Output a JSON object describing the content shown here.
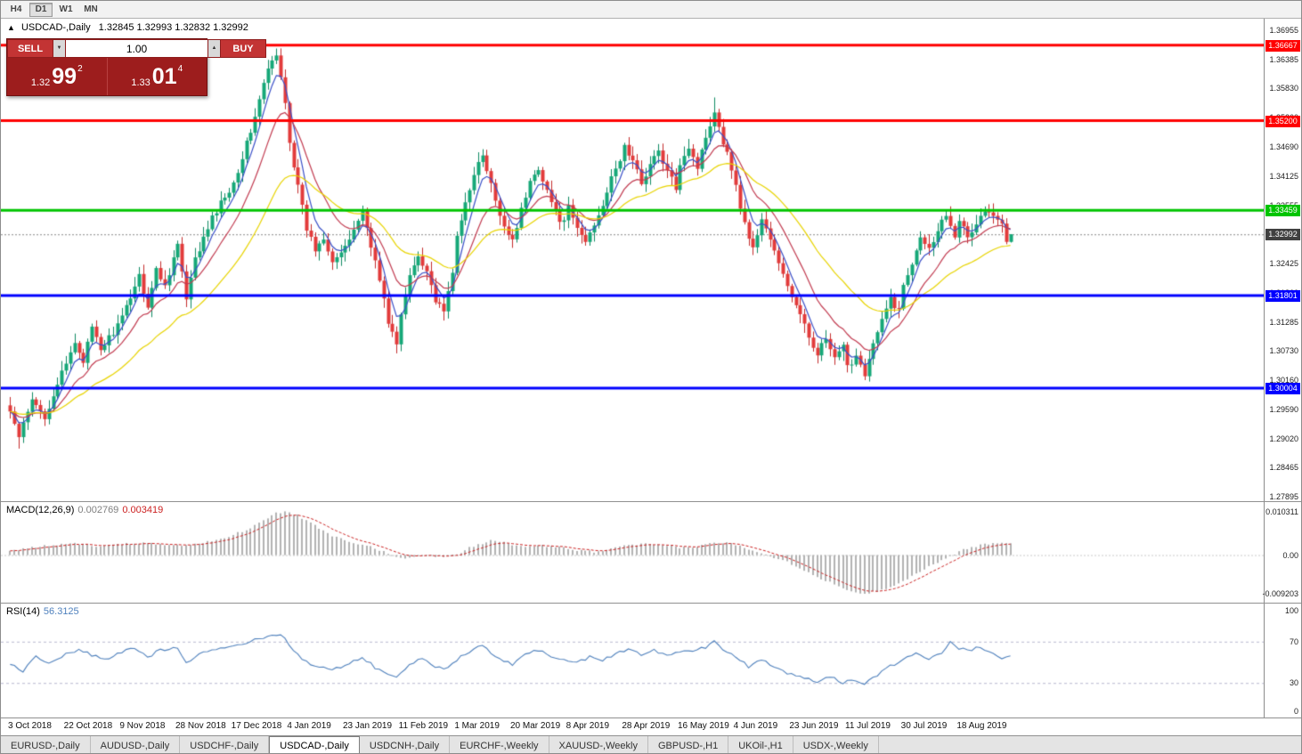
{
  "toolbar": {
    "timeframes": [
      {
        "label": "H4",
        "active": false
      },
      {
        "label": "D1",
        "active": true
      },
      {
        "label": "W1",
        "active": false
      },
      {
        "label": "MN",
        "active": false
      }
    ]
  },
  "header": {
    "collapse_icon": "▲",
    "title": "USDCAD-,Daily",
    "ohlc": "1.32845 1.32993 1.32832 1.32992"
  },
  "trade_panel": {
    "sell_label": "SELL",
    "buy_label": "BUY",
    "volume": "1.00",
    "volume_down_icon": "▼",
    "volume_up_icon": "▲",
    "sell_price": {
      "small": "1.32",
      "big": "99",
      "sup": "2"
    },
    "buy_price": {
      "small": "1.33",
      "big": "01",
      "sup": "4"
    }
  },
  "chart_data": {
    "type": "candlestick",
    "symbol": "USDCAD-,Daily",
    "n_candles": 234,
    "noise": 0.0014,
    "y_axis": {
      "min": 1.27895,
      "max": 1.36955,
      "ticks": [
        "1.36955",
        "1.36385",
        "1.35830",
        "1.35260",
        "1.34690",
        "1.34125",
        "1.33555",
        "1.32990",
        "1.32425",
        "1.31860",
        "1.31285",
        "1.30730",
        "1.30160",
        "1.29590",
        "1.29020",
        "1.28465",
        "1.27895"
      ]
    },
    "x_labels": [
      "3 Oct 2018",
      "22 Oct 2018",
      "9 Nov 2018",
      "28 Nov 2018",
      "17 Dec 2018",
      "4 Jan 2019",
      "23 Jan 2019",
      "11 Feb 2019",
      "1 Mar 2019",
      "20 Mar 2019",
      "8 Apr 2019",
      "28 Apr 2019",
      "16 May 2019",
      "4 Jun 2019",
      "23 Jun 2019",
      "11 Jul 2019",
      "30 Jul 2019",
      "18 Aug 2019"
    ],
    "x_label_step": 13,
    "close_waypoints": [
      [
        0,
        1.2955
      ],
      [
        2,
        1.2905
      ],
      [
        5,
        1.2975
      ],
      [
        8,
        1.2945
      ],
      [
        11,
        1.301
      ],
      [
        13,
        1.3045
      ],
      [
        15,
        1.309
      ],
      [
        17,
        1.3055
      ],
      [
        19,
        1.3115
      ],
      [
        21,
        1.3075
      ],
      [
        24,
        1.311
      ],
      [
        26,
        1.3135
      ],
      [
        28,
        1.318
      ],
      [
        30,
        1.322
      ],
      [
        32,
        1.316
      ],
      [
        34,
        1.323
      ],
      [
        36,
        1.32
      ],
      [
        39,
        1.328
      ],
      [
        41,
        1.317
      ],
      [
        43,
        1.325
      ],
      [
        45,
        1.329
      ],
      [
        47,
        1.333
      ],
      [
        49,
        1.336
      ],
      [
        52,
        1.34
      ],
      [
        54,
        1.345
      ],
      [
        56,
        1.35
      ],
      [
        58,
        1.356
      ],
      [
        60,
        1.362
      ],
      [
        62,
        1.3645
      ],
      [
        64,
        1.356
      ],
      [
        65,
        1.348
      ],
      [
        67,
        1.339
      ],
      [
        69,
        1.331
      ],
      [
        71,
        1.327
      ],
      [
        73,
        1.3295
      ],
      [
        75,
        1.325
      ],
      [
        78,
        1.327
      ],
      [
        80,
        1.331
      ],
      [
        82,
        1.3345
      ],
      [
        84,
        1.328
      ],
      [
        86,
        1.321
      ],
      [
        88,
        1.313
      ],
      [
        90,
        1.3085
      ],
      [
        91,
        1.314
      ],
      [
        93,
        1.322
      ],
      [
        95,
        1.326
      ],
      [
        97,
        1.323
      ],
      [
        99,
        1.317
      ],
      [
        101,
        1.3145
      ],
      [
        103,
        1.323
      ],
      [
        104,
        1.329
      ],
      [
        106,
        1.336
      ],
      [
        108,
        1.342
      ],
      [
        110,
        1.345
      ],
      [
        112,
        1.3395
      ],
      [
        114,
        1.333
      ],
      [
        117,
        1.329
      ],
      [
        119,
        1.3345
      ],
      [
        121,
        1.34
      ],
      [
        123,
        1.343
      ],
      [
        125,
        1.3385
      ],
      [
        127,
        1.334
      ],
      [
        129,
        1.332
      ],
      [
        130,
        1.335
      ],
      [
        132,
        1.331
      ],
      [
        134,
        1.3285
      ],
      [
        136,
        1.332
      ],
      [
        138,
        1.336
      ],
      [
        140,
        1.3405
      ],
      [
        142,
        1.3445
      ],
      [
        143,
        1.347
      ],
      [
        145,
        1.344
      ],
      [
        147,
        1.34
      ],
      [
        149,
        1.3435
      ],
      [
        151,
        1.346
      ],
      [
        153,
        1.342
      ],
      [
        155,
        1.339
      ],
      [
        156,
        1.344
      ],
      [
        158,
        1.347
      ],
      [
        160,
        1.343
      ],
      [
        162,
        1.349
      ],
      [
        164,
        1.354
      ],
      [
        166,
        1.348
      ],
      [
        168,
        1.343
      ],
      [
        169,
        1.339
      ],
      [
        171,
        1.332
      ],
      [
        173,
        1.327
      ],
      [
        175,
        1.333
      ],
      [
        177,
        1.329
      ],
      [
        179,
        1.324
      ],
      [
        182,
        1.318
      ],
      [
        184,
        1.314
      ],
      [
        186,
        1.31
      ],
      [
        188,
        1.307
      ],
      [
        190,
        1.3095
      ],
      [
        192,
        1.3055
      ],
      [
        194,
        1.308
      ],
      [
        195,
        1.304
      ],
      [
        197,
        1.3065
      ],
      [
        199,
        1.303
      ],
      [
        201,
        1.3085
      ],
      [
        203,
        1.313
      ],
      [
        205,
        1.3175
      ],
      [
        207,
        1.315
      ],
      [
        208,
        1.32
      ],
      [
        210,
        1.3245
      ],
      [
        212,
        1.33
      ],
      [
        214,
        1.327
      ],
      [
        216,
        1.331
      ],
      [
        218,
        1.334
      ],
      [
        220,
        1.33
      ],
      [
        221,
        1.333
      ],
      [
        223,
        1.329
      ],
      [
        225,
        1.332
      ],
      [
        227,
        1.3345
      ],
      [
        229,
        1.3335
      ],
      [
        231,
        1.332
      ],
      [
        232,
        1.32845
      ],
      [
        233,
        1.32992
      ]
    ],
    "extremes": [
      {
        "i": 2,
        "low": 1.2883
      },
      {
        "i": 62,
        "high": 1.366
      },
      {
        "i": 90,
        "low": 1.3068
      },
      {
        "i": 164,
        "high": 1.3565
      },
      {
        "i": 199,
        "low": 1.3016
      },
      {
        "i": 233,
        "high": 1.32993,
        "low": 1.32832
      }
    ],
    "moving_averages": [
      {
        "period": 5,
        "color": "#3a50c8"
      },
      {
        "period": 13,
        "color": "#c23b50"
      },
      {
        "period": 32,
        "color": "#e8d400"
      }
    ],
    "hlines": [
      {
        "label": "1.36667",
        "value": 1.36667,
        "color": "#ff0000"
      },
      {
        "label": "1.35200",
        "value": 1.352,
        "color": "#ff0000"
      },
      {
        "label": "1.33459",
        "value": 1.33459,
        "color": "#00c400"
      },
      {
        "label": "1.31801",
        "value": 1.31801,
        "color": "#0000ff"
      },
      {
        "label": "1.30004",
        "value": 1.30004,
        "color": "#0000ff"
      }
    ],
    "current_price": {
      "label": "1.32992",
      "value": 1.32992
    },
    "colors": {
      "bull": "#16a878",
      "bull_wick": "#0e8a62",
      "bear": "#e23b3b",
      "bear_wick": "#c32b2b",
      "macd_hist": "#b2b2b2",
      "macd_signal": "#cc2222",
      "rsi_line": "#4f81bd",
      "current_badge": "#404040",
      "current_line": "#8a8a8a",
      "rsi_level": "#b8b8d0",
      "macd_zero": "#cccccc"
    },
    "indicators": {
      "macd": {
        "name": "MACD(12,26,9)",
        "value_main": "0.002769",
        "value_signal": "0.003419",
        "axis": [
          {
            "label": "0.010311",
            "value": 0.010311
          },
          {
            "label": "0.00",
            "value": 0
          },
          {
            "label": "-0.009203",
            "value": -0.009203
          }
        ],
        "waypoints": [
          [
            0,
            0.0008
          ],
          [
            5,
            0.0018
          ],
          [
            10,
            0.0024
          ],
          [
            15,
            0.0028
          ],
          [
            20,
            0.0022
          ],
          [
            26,
            0.0026
          ],
          [
            31,
            0.003
          ],
          [
            36,
            0.0026
          ],
          [
            41,
            0.0022
          ],
          [
            47,
            0.0034
          ],
          [
            52,
            0.0048
          ],
          [
            57,
            0.007
          ],
          [
            62,
            0.01
          ],
          [
            64,
            0.0103
          ],
          [
            67,
            0.0095
          ],
          [
            71,
            0.007
          ],
          [
            75,
            0.0045
          ],
          [
            80,
            0.0028
          ],
          [
            84,
            0.002
          ],
          [
            88,
            0.0004
          ],
          [
            92,
            -0.001
          ],
          [
            96,
            0.0002
          ],
          [
            100,
            -0.0004
          ],
          [
            104,
            0.0002
          ],
          [
            108,
            0.0022
          ],
          [
            112,
            0.0034
          ],
          [
            116,
            0.0028
          ],
          [
            120,
            0.0018
          ],
          [
            124,
            0.0022
          ],
          [
            128,
            0.0018
          ],
          [
            132,
            0.0012
          ],
          [
            136,
            0.0008
          ],
          [
            140,
            0.0014
          ],
          [
            144,
            0.0024
          ],
          [
            148,
            0.0026
          ],
          [
            152,
            0.0022
          ],
          [
            156,
            0.0018
          ],
          [
            160,
            0.002
          ],
          [
            164,
            0.003
          ],
          [
            168,
            0.0028
          ],
          [
            172,
            0.0015
          ],
          [
            176,
            0.0002
          ],
          [
            180,
            -0.0012
          ],
          [
            184,
            -0.003
          ],
          [
            188,
            -0.0052
          ],
          [
            192,
            -0.007
          ],
          [
            196,
            -0.0085
          ],
          [
            199,
            -0.0092
          ],
          [
            202,
            -0.0086
          ],
          [
            206,
            -0.0072
          ],
          [
            210,
            -0.005
          ],
          [
            214,
            -0.0028
          ],
          [
            218,
            -0.0006
          ],
          [
            222,
            0.0012
          ],
          [
            226,
            0.0024
          ],
          [
            230,
            0.003
          ],
          [
            233,
            0.0028
          ]
        ]
      },
      "rsi": {
        "name": "RSI(14)",
        "value": "56.3125",
        "levels": [
          70,
          30
        ],
        "axis": [
          {
            "label": "100",
            "value": 100
          },
          {
            "label": "70",
            "value": 70
          },
          {
            "label": "30",
            "value": 30
          },
          {
            "label": "0",
            "value": 0
          }
        ],
        "waypoints": [
          [
            0,
            48
          ],
          [
            3,
            42
          ],
          [
            6,
            55
          ],
          [
            9,
            50
          ],
          [
            13,
            58
          ],
          [
            16,
            62
          ],
          [
            19,
            57
          ],
          [
            22,
            52
          ],
          [
            26,
            60
          ],
          [
            29,
            64
          ],
          [
            32,
            55
          ],
          [
            35,
            62
          ],
          [
            39,
            65
          ],
          [
            41,
            50
          ],
          [
            44,
            58
          ],
          [
            48,
            63
          ],
          [
            52,
            66
          ],
          [
            56,
            70
          ],
          [
            60,
            75
          ],
          [
            63,
            78
          ],
          [
            66,
            62
          ],
          [
            69,
            50
          ],
          [
            72,
            45
          ],
          [
            75,
            42
          ],
          [
            78,
            48
          ],
          [
            82,
            55
          ],
          [
            85,
            45
          ],
          [
            88,
            38
          ],
          [
            90,
            35
          ],
          [
            93,
            48
          ],
          [
            96,
            55
          ],
          [
            99,
            46
          ],
          [
            102,
            44
          ],
          [
            105,
            55
          ],
          [
            108,
            62
          ],
          [
            110,
            66
          ],
          [
            113,
            56
          ],
          [
            117,
            48
          ],
          [
            120,
            58
          ],
          [
            123,
            62
          ],
          [
            126,
            56
          ],
          [
            129,
            52
          ],
          [
            132,
            50
          ],
          [
            135,
            55
          ],
          [
            138,
            52
          ],
          [
            141,
            58
          ],
          [
            144,
            63
          ],
          [
            147,
            58
          ],
          [
            150,
            62
          ],
          [
            153,
            56
          ],
          [
            156,
            60
          ],
          [
            159,
            62
          ],
          [
            162,
            64
          ],
          [
            164,
            70
          ],
          [
            167,
            60
          ],
          [
            169,
            56
          ],
          [
            172,
            46
          ],
          [
            175,
            53
          ],
          [
            178,
            46
          ],
          [
            182,
            38
          ],
          [
            185,
            35
          ],
          [
            188,
            31
          ],
          [
            191,
            36
          ],
          [
            194,
            30
          ],
          [
            196,
            34
          ],
          [
            199,
            29
          ],
          [
            202,
            38
          ],
          [
            205,
            46
          ],
          [
            208,
            52
          ],
          [
            211,
            58
          ],
          [
            214,
            54
          ],
          [
            217,
            60
          ],
          [
            219,
            70
          ],
          [
            221,
            64
          ],
          [
            224,
            62
          ],
          [
            226,
            65
          ],
          [
            229,
            58
          ],
          [
            231,
            54
          ],
          [
            233,
            56.3
          ]
        ]
      }
    }
  },
  "tabs": [
    {
      "label": "EURUSD-,Daily",
      "active": false
    },
    {
      "label": "AUDUSD-,Daily",
      "active": false
    },
    {
      "label": "USDCHF-,Daily",
      "active": false
    },
    {
      "label": "USDCAD-,Daily",
      "active": true
    },
    {
      "label": "USDCNH-,Daily",
      "active": false
    },
    {
      "label": "EURCHF-,Weekly",
      "active": false
    },
    {
      "label": "XAUUSD-,Weekly",
      "active": false
    },
    {
      "label": "GBPUSD-,H1",
      "active": false
    },
    {
      "label": "UKOil-,H1",
      "active": false
    },
    {
      "label": "USDX-,Weekly",
      "active": false
    }
  ]
}
